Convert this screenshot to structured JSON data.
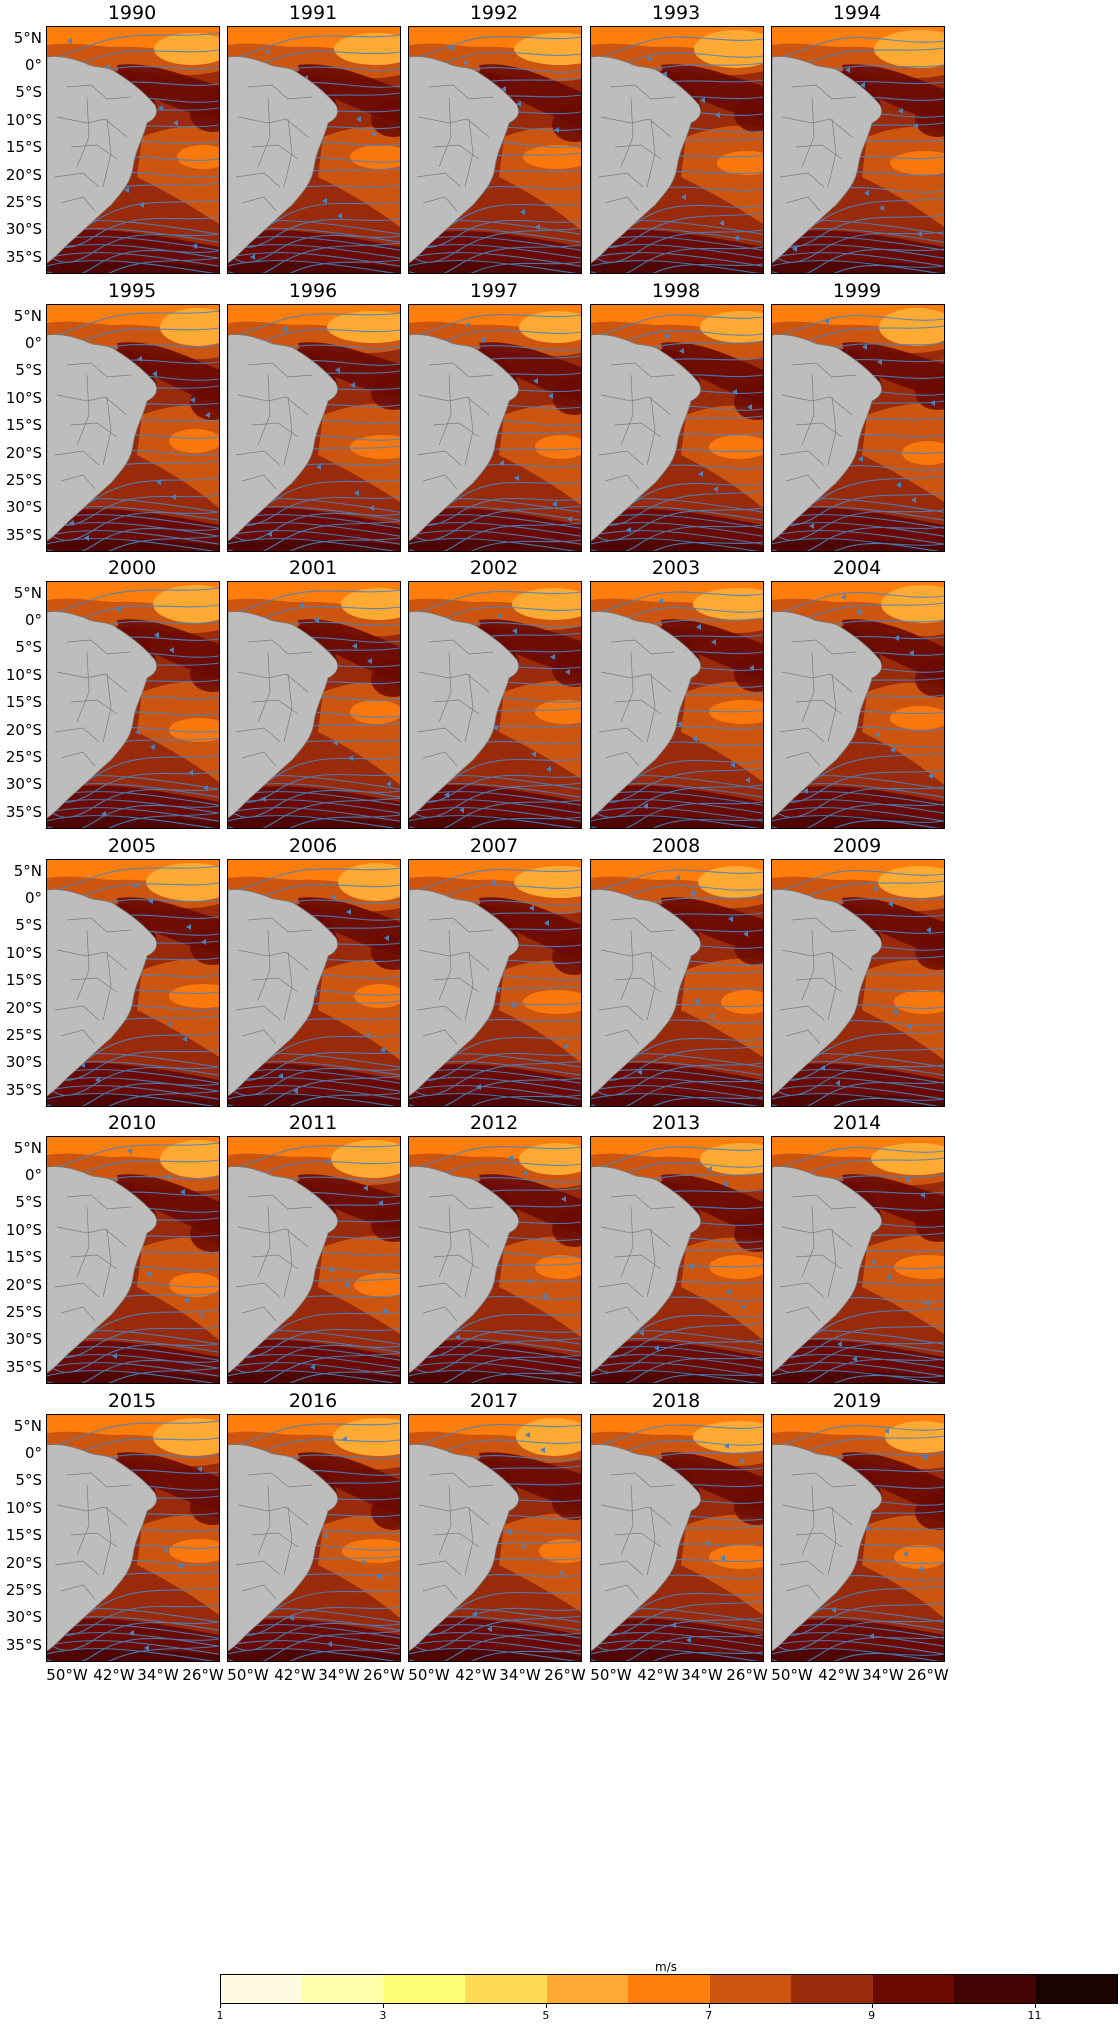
{
  "years": [
    "1990",
    "1991",
    "1992",
    "1993",
    "1994",
    "1995",
    "1996",
    "1997",
    "1998",
    "1999",
    "2000",
    "2001",
    "2002",
    "2003",
    "2004",
    "2005",
    "2006",
    "2007",
    "2008",
    "2009",
    "2010",
    "2011",
    "2012",
    "2013",
    "2014",
    "2015",
    "2016",
    "2017",
    "2018",
    "2019"
  ],
  "lat_ticks": [
    "5°N",
    "0°",
    "5°S",
    "10°S",
    "15°S",
    "20°S",
    "25°S",
    "30°S",
    "35°S"
  ],
  "lon_ticks": [
    "50°W",
    "42°W",
    "34°W",
    "26°W"
  ],
  "colorbar": {
    "label": "m/s",
    "tick_labels": [
      "1",
      "3",
      "5",
      "7",
      "9",
      "11"
    ],
    "range": [
      1,
      12
    ],
    "colors": [
      "#fffbe0",
      "#ffffaa",
      "#ffff77",
      "#ffdb55",
      "#ffaa33",
      "#ff7f0e",
      "#cc5510",
      "#992b0a",
      "#6b0a02",
      "#430404",
      "#1a0303"
    ]
  },
  "streamline_color": "#4a82c0",
  "land_color": "#bdbdbd"
}
